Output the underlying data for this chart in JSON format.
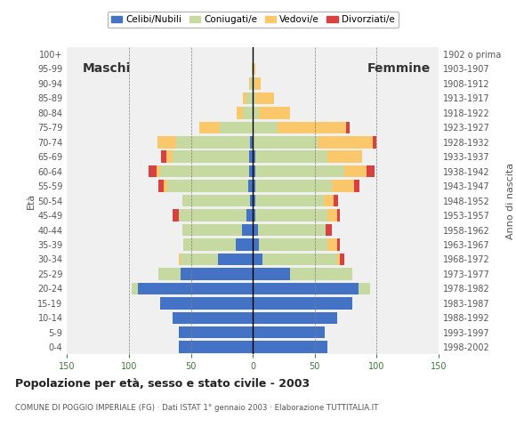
{
  "age_groups": [
    "0-4",
    "5-9",
    "10-14",
    "15-19",
    "20-24",
    "25-29",
    "30-34",
    "35-39",
    "40-44",
    "45-49",
    "50-54",
    "55-59",
    "60-64",
    "65-69",
    "70-74",
    "75-79",
    "80-84",
    "85-89",
    "90-94",
    "95-99",
    "100+"
  ],
  "birth_years": [
    "1998-2002",
    "1993-1997",
    "1988-1992",
    "1983-1987",
    "1978-1982",
    "1973-1977",
    "1968-1972",
    "1963-1967",
    "1958-1962",
    "1953-1957",
    "1948-1952",
    "1943-1947",
    "1938-1942",
    "1933-1937",
    "1928-1932",
    "1923-1927",
    "1918-1922",
    "1913-1917",
    "1908-1912",
    "1903-1907",
    "1902 o prima"
  ],
  "males": {
    "celibi": [
      60,
      60,
      65,
      75,
      93,
      58,
      28,
      14,
      9,
      5,
      2,
      4,
      3,
      3,
      2,
      0,
      0,
      0,
      0,
      0,
      0
    ],
    "coniugati": [
      0,
      0,
      0,
      0,
      5,
      18,
      30,
      42,
      48,
      55,
      55,
      65,
      72,
      62,
      60,
      27,
      8,
      5,
      2,
      1,
      0
    ],
    "vedovi": [
      0,
      0,
      0,
      0,
      0,
      0,
      2,
      0,
      0,
      0,
      0,
      3,
      3,
      5,
      15,
      16,
      5,
      3,
      1,
      0,
      0
    ],
    "divorziati": [
      0,
      0,
      0,
      0,
      0,
      0,
      0,
      0,
      0,
      5,
      0,
      4,
      6,
      4,
      0,
      0,
      0,
      0,
      0,
      0,
      0
    ]
  },
  "females": {
    "nubili": [
      60,
      58,
      68,
      80,
      85,
      30,
      8,
      5,
      4,
      2,
      2,
      2,
      2,
      2,
      0,
      0,
      0,
      0,
      0,
      0,
      0
    ],
    "coniugate": [
      0,
      0,
      0,
      0,
      10,
      50,
      60,
      55,
      55,
      58,
      55,
      62,
      72,
      58,
      52,
      20,
      5,
      2,
      1,
      0,
      0
    ],
    "vedove": [
      0,
      0,
      0,
      0,
      0,
      0,
      2,
      8,
      0,
      8,
      8,
      18,
      18,
      28,
      45,
      55,
      25,
      15,
      5,
      2,
      0
    ],
    "divorziate": [
      0,
      0,
      0,
      0,
      0,
      0,
      4,
      2,
      5,
      2,
      4,
      4,
      6,
      0,
      3,
      3,
      0,
      0,
      0,
      0,
      0
    ]
  },
  "colors": {
    "celibi": "#4472C4",
    "coniugati": "#C5D9A0",
    "vedovi": "#FAC86B",
    "divorziati": "#D94040"
  },
  "xlim": 150,
  "title": "Popolazione per età, sesso e stato civile - 2003",
  "subtitle": "COMUNE DI POGGIO IMPERIALE (FG) · Dati ISTAT 1° gennaio 2003 · Elaborazione TUTTITALIA.IT",
  "legend_labels": [
    "Celibi/Nubili",
    "Coniugati/e",
    "Vedovi/e",
    "Divorziati/e"
  ],
  "xlabel_left": "Maschi",
  "xlabel_right": "Femmine",
  "ylabel": "Età",
  "ylabel_right": "Anno di nascita",
  "bg_color": "#FFFFFF",
  "plot_bg": "#F0F0F0"
}
